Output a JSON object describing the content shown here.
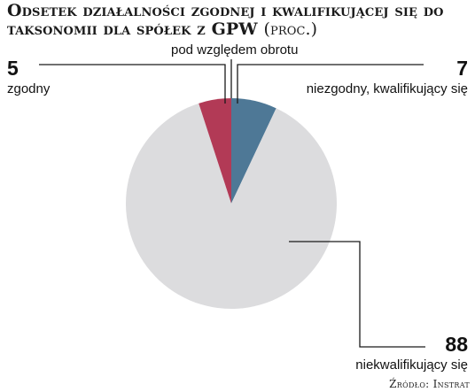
{
  "title": "Odsetek działalności zgodnej i kwalifikującej się do taksonomii dla spółek z GPW",
  "title_unit": "(proc.)",
  "subtitle": "pod względem obrotu",
  "source": "Źródło: Instrat",
  "chart_data": {
    "type": "pie",
    "title": "Odsetek działalności zgodnej i kwalifikującej się do taksonomii dla spółek z GPW (proc.)",
    "subtitle": "pod względem obrotu",
    "unit": "proc.",
    "slices": [
      {
        "label": "niezgodny, kwalifikujący się",
        "value": 7,
        "display": "7",
        "color": "#4e7896"
      },
      {
        "label": "niekwalifikujący się",
        "value": 88,
        "display": "88",
        "color": "#dcdcde"
      },
      {
        "label": "zgodny",
        "value": 5,
        "display": "5",
        "color": "#b23a56"
      }
    ],
    "start_angle": "12 o'clock",
    "direction": "clockwise",
    "legend": "none"
  }
}
